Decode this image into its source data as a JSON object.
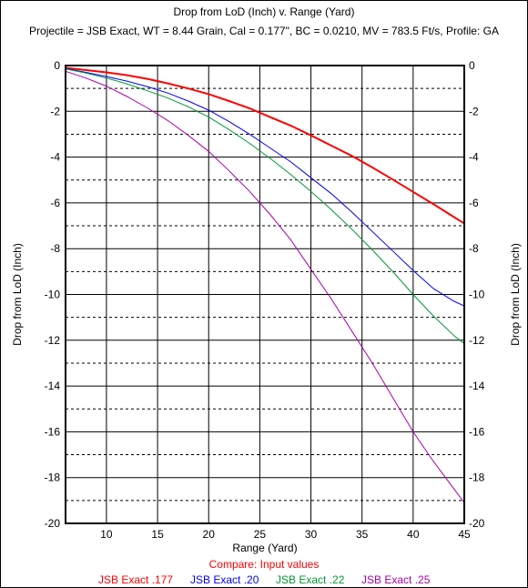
{
  "chart_data": {
    "type": "line",
    "title": "Drop from LoD (Inch) v. Range (Yard)",
    "subtitle": "Projectile = JSB Exact, WT = 8.44 Grain, Cal = 0.177\", BC = 0.0210, MV = 783.5 Ft/s, Profile: GA",
    "xlabel": "Range (Yard)",
    "ylabel": "Drop from LoD (Inch)",
    "xlim": [
      6,
      45
    ],
    "ylim": [
      -20,
      0
    ],
    "x_ticks": [
      "10",
      "15",
      "20",
      "25",
      "30",
      "35",
      "40",
      "45"
    ],
    "y_ticks": [
      "0",
      "-2",
      "-4",
      "-6",
      "-8",
      "-10",
      "-12",
      "-14",
      "-16",
      "-18",
      "-20"
    ],
    "grid": true,
    "legend_caption": "Compare: Input values",
    "legend_position": "bottom",
    "x": [
      6,
      8,
      10,
      12,
      14,
      16,
      18,
      20,
      22,
      24,
      26,
      28,
      30,
      32,
      34,
      36,
      38,
      40,
      42,
      44,
      45
    ],
    "series": [
      {
        "name": "JSB Exact .177",
        "color": "#ff0000",
        "values": [
          -0.1,
          -0.2,
          -0.3,
          -0.42,
          -0.58,
          -0.78,
          -1.0,
          -1.25,
          -1.55,
          -1.87,
          -2.25,
          -2.62,
          -3.05,
          -3.5,
          -3.95,
          -4.45,
          -4.98,
          -5.52,
          -6.06,
          -6.62,
          -6.9
        ]
      },
      {
        "name": "JSB Exact .20",
        "color": "#0000ff",
        "values": [
          -0.13,
          -0.3,
          -0.48,
          -0.68,
          -0.92,
          -1.2,
          -1.55,
          -1.95,
          -2.45,
          -3.0,
          -3.6,
          -4.2,
          -4.9,
          -5.6,
          -6.4,
          -7.25,
          -8.1,
          -8.95,
          -9.75,
          -10.3,
          -10.5
        ]
      },
      {
        "name": "JSB Exact .22",
        "color": "#009933",
        "values": [
          -0.15,
          -0.33,
          -0.55,
          -0.8,
          -1.1,
          -1.42,
          -1.8,
          -2.25,
          -2.8,
          -3.4,
          -4.05,
          -4.75,
          -5.5,
          -6.3,
          -7.15,
          -8.05,
          -9.0,
          -10.0,
          -10.95,
          -11.8,
          -12.15
        ]
      },
      {
        "name": "JSB Exact .25",
        "color": "#aa00aa",
        "values": [
          -0.25,
          -0.55,
          -0.9,
          -1.35,
          -1.85,
          -2.4,
          -3.05,
          -3.75,
          -4.6,
          -5.5,
          -6.5,
          -7.6,
          -8.9,
          -10.2,
          -11.6,
          -13.0,
          -14.5,
          -16.0,
          -17.3,
          -18.5,
          -19.1
        ]
      }
    ]
  }
}
